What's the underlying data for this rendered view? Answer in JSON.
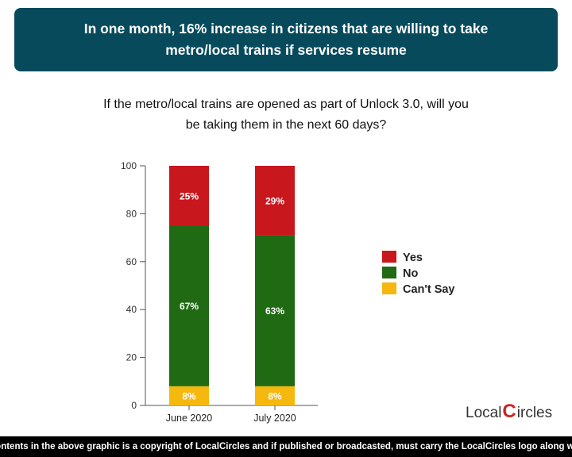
{
  "banner": {
    "line1": "In one month, 16% increase in citizens that are willing to take",
    "line2": "metro/local trains if services resume"
  },
  "question": {
    "line1": "If the metro/local trains are opened as part of Unlock 3.0, will you",
    "line2": "be taking them in the next 60 days?"
  },
  "chart_data": {
    "type": "bar",
    "stacked": true,
    "categories": [
      "June 2020",
      "July 2020"
    ],
    "series": [
      {
        "name": "Can't Say",
        "values": [
          8,
          8
        ],
        "labels": [
          "8%",
          "8%"
        ],
        "color": "#f5b80f"
      },
      {
        "name": "No",
        "values": [
          67,
          63
        ],
        "labels": [
          "67%",
          "63%"
        ],
        "color": "#1f6a13"
      },
      {
        "name": "Yes",
        "values": [
          25,
          29
        ],
        "labels": [
          "25%",
          "29%"
        ],
        "color": "#c8171d"
      }
    ],
    "legend_order": [
      "Yes",
      "No",
      "Can't Say"
    ],
    "yticks": [
      0,
      20,
      40,
      60,
      80,
      100
    ],
    "ylim": [
      0,
      100
    ],
    "legend_position": "right",
    "grid": false
  },
  "footer": {
    "text": "All contents in the above graphic is a copyright of LocalCircles and if published or broadcasted, must carry the LocalCircles logo along with it."
  },
  "logo": {
    "part1": "Local",
    "mark": "C",
    "part2": "ircles"
  }
}
